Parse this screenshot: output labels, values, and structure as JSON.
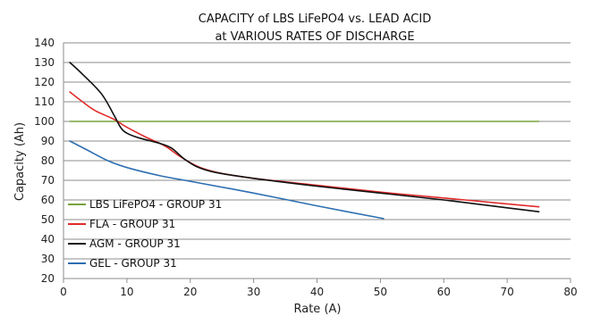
{
  "chart_data": {
    "type": "line",
    "title_line1": "CAPACITY of LBS LiFePO4 vs. LEAD ACID",
    "title_line2": "at VARIOUS RATES OF DISCHARGE",
    "xlabel": "Rate (A)",
    "ylabel": "Capacity (Ah)",
    "xlim": [
      0,
      80
    ],
    "ylim": [
      20,
      140
    ],
    "xticks": [
      0,
      10,
      20,
      30,
      40,
      50,
      60,
      70,
      80
    ],
    "yticks": [
      20,
      30,
      40,
      50,
      60,
      70,
      80,
      90,
      100,
      110,
      120,
      130,
      140
    ],
    "grid": "horizontal",
    "legend_position": "bottom-left",
    "series": [
      {
        "name": "LBS LiFePO4 - GROUP 31",
        "color": "#77a33c",
        "points": [
          [
            1,
            100
          ],
          [
            75,
            100
          ]
        ]
      },
      {
        "name": "FLA - GROUP 31",
        "color": "#e02b2b",
        "points": [
          [
            1,
            115
          ],
          [
            3,
            110
          ],
          [
            5,
            105.5
          ],
          [
            8,
            101
          ],
          [
            10,
            97
          ],
          [
            13,
            92
          ],
          [
            16,
            87.5
          ],
          [
            18,
            83
          ],
          [
            20,
            79
          ],
          [
            22,
            76
          ],
          [
            25,
            73.5
          ],
          [
            30,
            71
          ],
          [
            40,
            67.5
          ],
          [
            50,
            64
          ],
          [
            60,
            61
          ],
          [
            70,
            58
          ],
          [
            75,
            56.5
          ]
        ]
      },
      {
        "name": "AGM - GROUP 31",
        "color": "#111111",
        "points": [
          [
            1,
            130
          ],
          [
            3,
            124
          ],
          [
            6,
            114
          ],
          [
            8,
            103
          ],
          [
            9,
            97
          ],
          [
            10,
            94
          ],
          [
            12,
            91.5
          ],
          [
            15,
            89
          ],
          [
            17,
            86.5
          ],
          [
            19,
            81
          ],
          [
            21,
            77
          ],
          [
            24,
            74
          ],
          [
            30,
            71
          ],
          [
            40,
            67
          ],
          [
            50,
            63.5
          ],
          [
            60,
            60
          ],
          [
            70,
            56
          ],
          [
            75,
            54
          ]
        ]
      },
      {
        "name": "GEL - GROUP 31",
        "color": "#2e6fb2",
        "points": [
          [
            1,
            90
          ],
          [
            4,
            85
          ],
          [
            7,
            80
          ],
          [
            10,
            76.5
          ],
          [
            15,
            72.5
          ],
          [
            20,
            69.5
          ],
          [
            30,
            63.5
          ],
          [
            40,
            57
          ],
          [
            50.5,
            50.5
          ]
        ]
      }
    ]
  }
}
